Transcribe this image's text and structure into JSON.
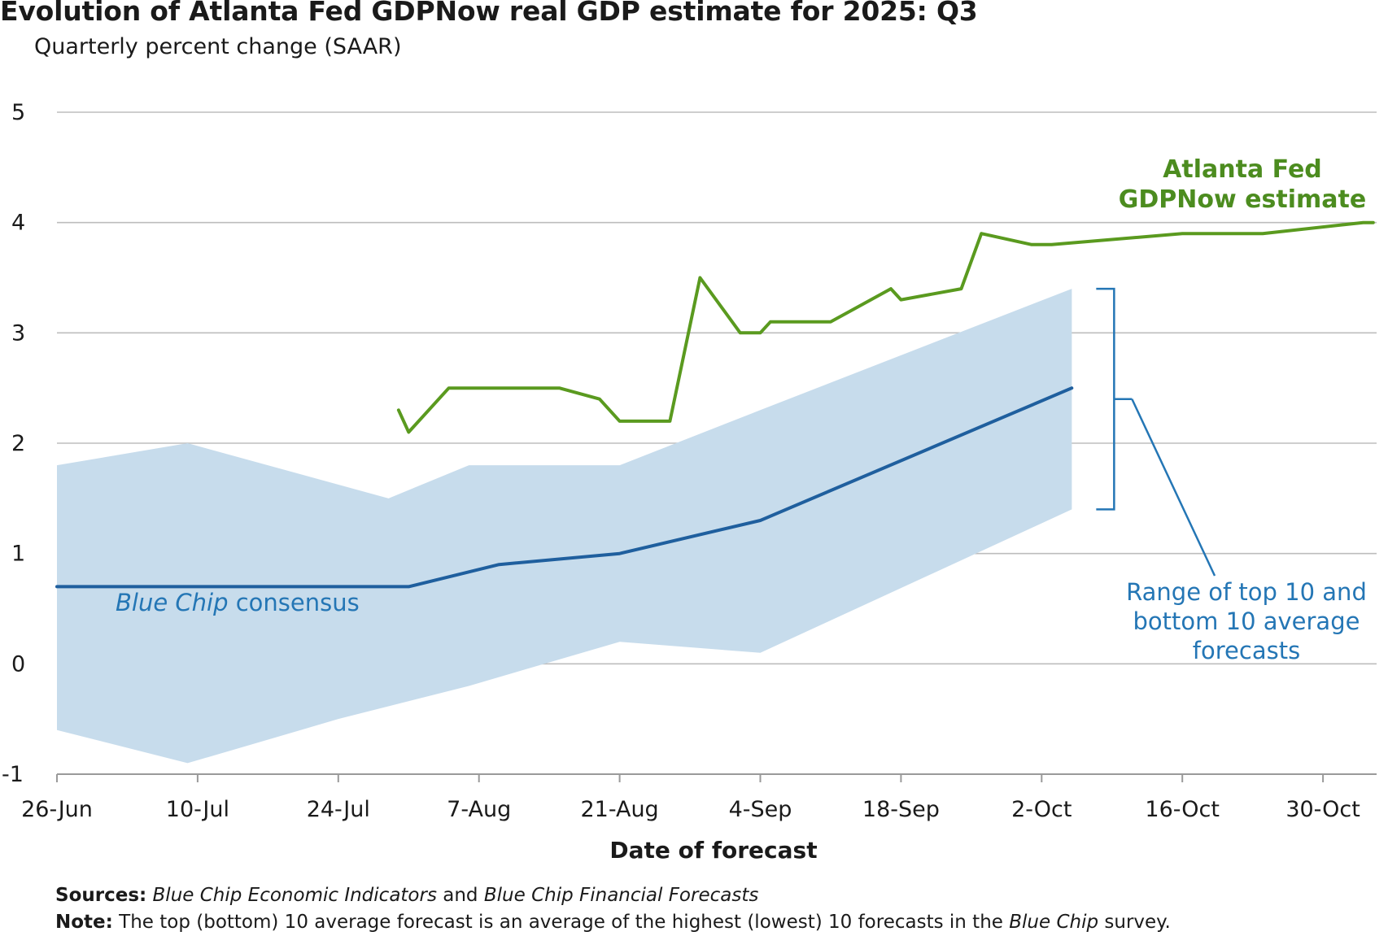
{
  "title": "Evolution of Atlanta Fed GDPNow real GDP estimate for 2025: Q3",
  "subtitle": "Quarterly percent change (SAAR)",
  "colors": {
    "gdpnow": "#5a9a1f",
    "consensus": "#1f5f9e",
    "band": "#c7dcec",
    "bracket": "#2476b5",
    "grid": "#bdbdbd"
  },
  "annotations": {
    "gdpnow_line1": "Atlanta Fed",
    "gdpnow_line2": "GDPNow estimate",
    "consensus_italic": "Blue Chip",
    "consensus_rest": " consensus",
    "range_line1": "Range of top 10 and",
    "range_line2": "bottom 10 average",
    "range_line3": "forecasts"
  },
  "footer": {
    "sources_label": "Sources:",
    "sources_italic1": "Blue Chip Economic Indicators",
    "sources_mid": " and ",
    "sources_italic2": "Blue Chip Financial Forecasts",
    "note_label": "Note:",
    "note_text": " The top (bottom) 10 average forecast is an average of the highest (lowest) 10 forecasts in the ",
    "note_italic": "Blue Chip",
    "note_end": " survey."
  },
  "chart_data": {
    "type": "line",
    "xlabel": "Date of forecast",
    "ylabel": "",
    "ylim": [
      -1,
      5
    ],
    "yticks": [
      -1,
      0,
      1,
      2,
      3,
      4,
      5
    ],
    "x_tick_labels": [
      "26-Jun",
      "10-Jul",
      "24-Jul",
      "7-Aug",
      "21-Aug",
      "4-Sep",
      "18-Sep",
      "2-Oct",
      "16-Oct",
      "30-Oct"
    ],
    "x_tick_dates": [
      "2025-06-26",
      "2025-07-10",
      "2025-07-24",
      "2025-08-07",
      "2025-08-21",
      "2025-09-04",
      "2025-09-18",
      "2025-10-02",
      "2025-10-16",
      "2025-10-30"
    ],
    "x_range": [
      "2025-06-26",
      "2025-11-04"
    ],
    "grid": true,
    "series": [
      {
        "name": "Atlanta Fed GDPNow estimate",
        "points": [
          [
            "2025-07-30",
            2.3
          ],
          [
            "2025-07-31",
            2.1
          ],
          [
            "2025-08-04",
            2.5
          ],
          [
            "2025-08-08",
            2.5
          ],
          [
            "2025-08-15",
            2.5
          ],
          [
            "2025-08-19",
            2.4
          ],
          [
            "2025-08-21",
            2.2
          ],
          [
            "2025-08-26",
            2.2
          ],
          [
            "2025-08-29",
            3.5
          ],
          [
            "2025-09-02",
            3.0
          ],
          [
            "2025-09-04",
            3.0
          ],
          [
            "2025-09-05",
            3.1
          ],
          [
            "2025-09-11",
            3.1
          ],
          [
            "2025-09-17",
            3.4
          ],
          [
            "2025-09-18",
            3.3
          ],
          [
            "2025-09-24",
            3.4
          ],
          [
            "2025-09-26",
            3.9
          ],
          [
            "2025-10-01",
            3.8
          ],
          [
            "2025-10-03",
            3.8
          ],
          [
            "2025-10-16",
            3.9
          ],
          [
            "2025-10-24",
            3.9
          ],
          [
            "2025-11-03",
            4.0
          ],
          [
            "2025-11-04",
            4.0
          ]
        ]
      },
      {
        "name": "Blue Chip consensus",
        "points": [
          [
            "2025-06-26",
            0.7
          ],
          [
            "2025-07-10",
            0.7
          ],
          [
            "2025-07-31",
            0.7
          ],
          [
            "2025-08-09",
            0.9
          ],
          [
            "2025-08-21",
            1.0
          ],
          [
            "2025-09-04",
            1.3
          ],
          [
            "2025-10-05",
            2.5
          ]
        ]
      },
      {
        "name": "Range of top 10 and bottom 10 average forecasts",
        "type": "band",
        "upper": [
          [
            "2025-06-26",
            1.8
          ],
          [
            "2025-07-09",
            2.0
          ],
          [
            "2025-07-29",
            1.5
          ],
          [
            "2025-08-06",
            1.8
          ],
          [
            "2025-08-21",
            1.8
          ],
          [
            "2025-09-04",
            2.3
          ],
          [
            "2025-10-05",
            3.4
          ]
        ],
        "lower": [
          [
            "2025-06-26",
            -0.6
          ],
          [
            "2025-07-09",
            -0.9
          ],
          [
            "2025-07-24",
            -0.5
          ],
          [
            "2025-08-06",
            -0.2
          ],
          [
            "2025-08-21",
            0.2
          ],
          [
            "2025-09-04",
            0.1
          ],
          [
            "2025-10-05",
            1.4
          ]
        ]
      }
    ]
  }
}
